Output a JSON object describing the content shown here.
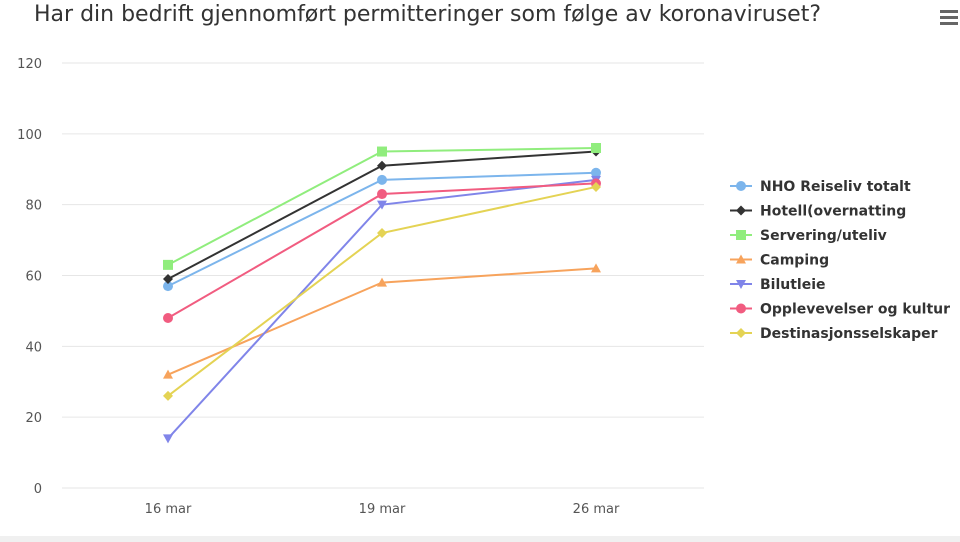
{
  "chart_data": {
    "type": "line",
    "title": "Har din bedrift gjennomført permitteringer som følge av koronaviruset?",
    "xlabel": "",
    "ylabel": "",
    "categories": [
      "16 mar",
      "19 mar",
      "26 mar"
    ],
    "ylim": [
      0,
      120
    ],
    "yticks": [
      0,
      20,
      40,
      60,
      80,
      100,
      120
    ],
    "grid": true,
    "legend_position": "right",
    "series": [
      {
        "name": "NHO Reiseliv totalt",
        "values": [
          57,
          87,
          89
        ],
        "color": "#7cb5ec",
        "marker": "circle"
      },
      {
        "name": "Hotell(overnatting",
        "values": [
          59,
          91,
          95
        ],
        "color": "#333333",
        "marker": "diamond"
      },
      {
        "name": "Servering/uteliv",
        "values": [
          63,
          95,
          96
        ],
        "color": "#90ed7d",
        "marker": "square"
      },
      {
        "name": "Camping",
        "values": [
          32,
          58,
          62
        ],
        "color": "#f7a35c",
        "marker": "triangle"
      },
      {
        "name": "Bilutleie",
        "values": [
          14,
          80,
          87
        ],
        "color": "#8085e9",
        "marker": "triangle-down"
      },
      {
        "name": "Opplevevelser og kultur",
        "values": [
          48,
          83,
          86
        ],
        "color": "#f15c80",
        "marker": "circle"
      },
      {
        "name": "Destinasjonsselskaper",
        "values": [
          26,
          72,
          85
        ],
        "color": "#e4d354",
        "marker": "diamond"
      }
    ]
  },
  "menu_icon": "hamburger-menu-icon"
}
